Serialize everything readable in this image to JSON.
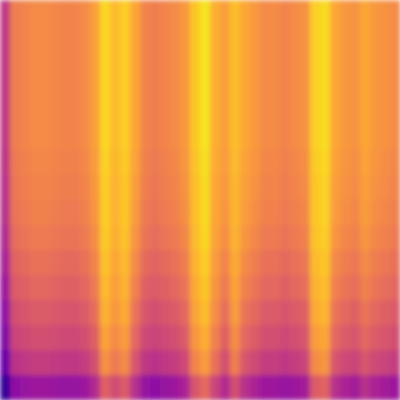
{
  "chart_data": {
    "type": "heatmap",
    "color": "plasma",
    "tick_labels": false,
    "zlim": [
      0,
      1
    ],
    "cells": [
      [
        0.45,
        0.68,
        0.7,
        0.72,
        0.72,
        0.71,
        0.7,
        0.7,
        0.72,
        0.78,
        0.92,
        0.85,
        0.9,
        0.8,
        0.7,
        0.68,
        0.7,
        0.72,
        0.76,
        0.88,
        0.95,
        0.82,
        0.78,
        0.86,
        0.8,
        0.76,
        0.72,
        0.72,
        0.7,
        0.72,
        0.74,
        0.9,
        0.93,
        0.8,
        0.76,
        0.74,
        0.8,
        0.76,
        0.74,
        0.72
      ],
      [
        0.45,
        0.68,
        0.7,
        0.72,
        0.72,
        0.71,
        0.7,
        0.7,
        0.72,
        0.78,
        0.92,
        0.85,
        0.9,
        0.8,
        0.7,
        0.68,
        0.7,
        0.72,
        0.76,
        0.88,
        0.95,
        0.82,
        0.78,
        0.86,
        0.8,
        0.76,
        0.72,
        0.72,
        0.7,
        0.72,
        0.74,
        0.9,
        0.93,
        0.8,
        0.76,
        0.74,
        0.8,
        0.76,
        0.74,
        0.72
      ],
      [
        0.45,
        0.68,
        0.7,
        0.72,
        0.72,
        0.71,
        0.7,
        0.7,
        0.72,
        0.78,
        0.92,
        0.85,
        0.9,
        0.8,
        0.7,
        0.68,
        0.7,
        0.72,
        0.76,
        0.88,
        0.95,
        0.82,
        0.78,
        0.86,
        0.8,
        0.76,
        0.72,
        0.72,
        0.7,
        0.72,
        0.74,
        0.9,
        0.93,
        0.8,
        0.76,
        0.74,
        0.8,
        0.76,
        0.74,
        0.72
      ],
      [
        0.45,
        0.68,
        0.7,
        0.72,
        0.72,
        0.71,
        0.7,
        0.7,
        0.72,
        0.78,
        0.92,
        0.85,
        0.9,
        0.8,
        0.7,
        0.68,
        0.7,
        0.72,
        0.76,
        0.88,
        0.95,
        0.82,
        0.78,
        0.86,
        0.8,
        0.76,
        0.72,
        0.72,
        0.7,
        0.72,
        0.74,
        0.9,
        0.93,
        0.8,
        0.76,
        0.74,
        0.8,
        0.76,
        0.74,
        0.72
      ],
      [
        0.45,
        0.68,
        0.7,
        0.72,
        0.72,
        0.71,
        0.7,
        0.7,
        0.72,
        0.78,
        0.92,
        0.85,
        0.9,
        0.8,
        0.7,
        0.68,
        0.7,
        0.72,
        0.76,
        0.88,
        0.95,
        0.82,
        0.78,
        0.86,
        0.8,
        0.76,
        0.72,
        0.72,
        0.7,
        0.72,
        0.74,
        0.9,
        0.93,
        0.8,
        0.76,
        0.74,
        0.8,
        0.76,
        0.74,
        0.72
      ],
      [
        0.45,
        0.68,
        0.7,
        0.72,
        0.72,
        0.71,
        0.7,
        0.7,
        0.72,
        0.78,
        0.92,
        0.85,
        0.9,
        0.8,
        0.7,
        0.68,
        0.7,
        0.72,
        0.76,
        0.88,
        0.95,
        0.82,
        0.78,
        0.86,
        0.8,
        0.76,
        0.72,
        0.72,
        0.7,
        0.72,
        0.74,
        0.9,
        0.93,
        0.8,
        0.76,
        0.74,
        0.8,
        0.76,
        0.74,
        0.72
      ],
      [
        0.44,
        0.67,
        0.69,
        0.71,
        0.71,
        0.7,
        0.69,
        0.69,
        0.71,
        0.77,
        0.91,
        0.84,
        0.89,
        0.79,
        0.69,
        0.67,
        0.69,
        0.71,
        0.75,
        0.87,
        0.94,
        0.81,
        0.77,
        0.85,
        0.79,
        0.75,
        0.71,
        0.71,
        0.69,
        0.71,
        0.73,
        0.89,
        0.92,
        0.79,
        0.75,
        0.73,
        0.79,
        0.75,
        0.73,
        0.71
      ],
      [
        0.43,
        0.66,
        0.68,
        0.7,
        0.7,
        0.69,
        0.68,
        0.68,
        0.7,
        0.76,
        0.9,
        0.83,
        0.88,
        0.78,
        0.68,
        0.66,
        0.68,
        0.7,
        0.74,
        0.86,
        0.93,
        0.8,
        0.76,
        0.84,
        0.78,
        0.74,
        0.7,
        0.7,
        0.68,
        0.7,
        0.72,
        0.88,
        0.91,
        0.78,
        0.74,
        0.72,
        0.78,
        0.74,
        0.72,
        0.7
      ],
      [
        0.42,
        0.65,
        0.67,
        0.69,
        0.69,
        0.68,
        0.67,
        0.67,
        0.69,
        0.75,
        0.9,
        0.83,
        0.88,
        0.77,
        0.67,
        0.65,
        0.67,
        0.69,
        0.73,
        0.86,
        0.93,
        0.8,
        0.75,
        0.84,
        0.77,
        0.73,
        0.69,
        0.69,
        0.67,
        0.69,
        0.71,
        0.88,
        0.91,
        0.77,
        0.73,
        0.71,
        0.77,
        0.73,
        0.71,
        0.69
      ],
      [
        0.4,
        0.63,
        0.65,
        0.67,
        0.67,
        0.66,
        0.65,
        0.65,
        0.67,
        0.73,
        0.89,
        0.82,
        0.87,
        0.75,
        0.65,
        0.63,
        0.65,
        0.67,
        0.71,
        0.85,
        0.92,
        0.79,
        0.73,
        0.83,
        0.75,
        0.71,
        0.67,
        0.67,
        0.65,
        0.67,
        0.69,
        0.87,
        0.9,
        0.75,
        0.71,
        0.69,
        0.75,
        0.71,
        0.69,
        0.67
      ],
      [
        0.37,
        0.6,
        0.62,
        0.64,
        0.64,
        0.63,
        0.62,
        0.62,
        0.64,
        0.7,
        0.87,
        0.8,
        0.85,
        0.72,
        0.62,
        0.6,
        0.62,
        0.64,
        0.68,
        0.83,
        0.9,
        0.77,
        0.7,
        0.81,
        0.72,
        0.68,
        0.64,
        0.64,
        0.62,
        0.64,
        0.66,
        0.85,
        0.88,
        0.72,
        0.68,
        0.66,
        0.72,
        0.68,
        0.66,
        0.64
      ],
      [
        0.34,
        0.57,
        0.59,
        0.61,
        0.61,
        0.6,
        0.59,
        0.59,
        0.61,
        0.67,
        0.85,
        0.78,
        0.83,
        0.69,
        0.59,
        0.57,
        0.59,
        0.61,
        0.65,
        0.81,
        0.88,
        0.75,
        0.67,
        0.79,
        0.69,
        0.65,
        0.61,
        0.61,
        0.59,
        0.61,
        0.63,
        0.83,
        0.86,
        0.69,
        0.65,
        0.63,
        0.69,
        0.65,
        0.63,
        0.61
      ],
      [
        0.3,
        0.53,
        0.55,
        0.57,
        0.57,
        0.56,
        0.55,
        0.55,
        0.57,
        0.63,
        0.83,
        0.76,
        0.81,
        0.65,
        0.55,
        0.53,
        0.55,
        0.57,
        0.61,
        0.79,
        0.86,
        0.73,
        0.63,
        0.77,
        0.65,
        0.61,
        0.57,
        0.57,
        0.55,
        0.57,
        0.59,
        0.81,
        0.84,
        0.65,
        0.61,
        0.59,
        0.65,
        0.61,
        0.59,
        0.57
      ],
      [
        0.26,
        0.49,
        0.51,
        0.53,
        0.53,
        0.52,
        0.51,
        0.51,
        0.53,
        0.59,
        0.79,
        0.72,
        0.77,
        0.61,
        0.51,
        0.49,
        0.51,
        0.53,
        0.57,
        0.75,
        0.82,
        0.69,
        0.59,
        0.73,
        0.61,
        0.57,
        0.53,
        0.53,
        0.51,
        0.53,
        0.55,
        0.77,
        0.8,
        0.61,
        0.57,
        0.55,
        0.61,
        0.57,
        0.55,
        0.53
      ],
      [
        0.2,
        0.43,
        0.45,
        0.47,
        0.47,
        0.46,
        0.45,
        0.45,
        0.47,
        0.53,
        0.74,
        0.67,
        0.72,
        0.55,
        0.45,
        0.43,
        0.45,
        0.47,
        0.51,
        0.7,
        0.77,
        0.64,
        0.53,
        0.68,
        0.55,
        0.51,
        0.47,
        0.47,
        0.45,
        0.47,
        0.49,
        0.72,
        0.75,
        0.55,
        0.51,
        0.49,
        0.55,
        0.51,
        0.49,
        0.47
      ],
      [
        0.07,
        0.3,
        0.32,
        0.34,
        0.34,
        0.33,
        0.32,
        0.32,
        0.34,
        0.4,
        0.59,
        0.52,
        0.57,
        0.42,
        0.32,
        0.3,
        0.32,
        0.34,
        0.38,
        0.55,
        0.62,
        0.49,
        0.4,
        0.53,
        0.42,
        0.38,
        0.34,
        0.34,
        0.32,
        0.34,
        0.36,
        0.57,
        0.6,
        0.42,
        0.38,
        0.36,
        0.42,
        0.38,
        0.36,
        0.34
      ]
    ]
  }
}
